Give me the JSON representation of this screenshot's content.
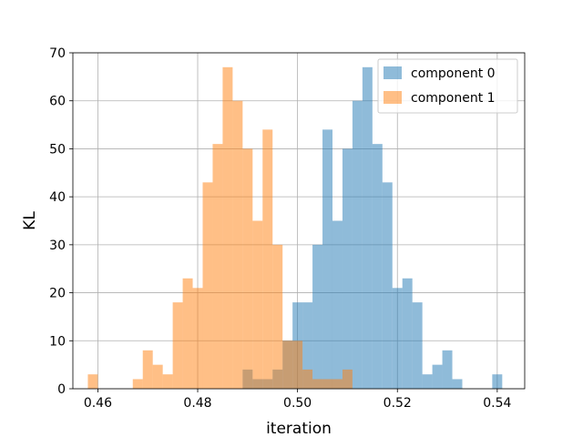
{
  "chart_data": {
    "type": "bar",
    "subtype": "overlapping-histogram",
    "title": "",
    "xlabel": "iteration",
    "ylabel": "KL",
    "xlim": [
      0.455,
      0.5455
    ],
    "ylim": [
      0,
      70
    ],
    "xticks": [
      "0.46",
      "0.48",
      "0.50",
      "0.52",
      "0.54"
    ],
    "yticks": [
      "0",
      "10",
      "20",
      "30",
      "40",
      "50",
      "60",
      "70"
    ],
    "grid": true,
    "legend": "top-right",
    "bar_opacity": 0.5,
    "series": [
      {
        "name": "component 0",
        "color": "#1f77b4",
        "bins": [
          {
            "x0": 0.489,
            "x1": 0.491,
            "value": 4
          },
          {
            "x0": 0.491,
            "x1": 0.493,
            "value": 2
          },
          {
            "x0": 0.493,
            "x1": 0.495,
            "value": 2
          },
          {
            "x0": 0.495,
            "x1": 0.497,
            "value": 4
          },
          {
            "x0": 0.497,
            "x1": 0.499,
            "value": 10
          },
          {
            "x0": 0.499,
            "x1": 0.501,
            "value": 18
          },
          {
            "x0": 0.501,
            "x1": 0.503,
            "value": 18
          },
          {
            "x0": 0.503,
            "x1": 0.505,
            "value": 30
          },
          {
            "x0": 0.505,
            "x1": 0.507,
            "value": 54
          },
          {
            "x0": 0.507,
            "x1": 0.509,
            "value": 35
          },
          {
            "x0": 0.509,
            "x1": 0.511,
            "value": 50
          },
          {
            "x0": 0.511,
            "x1": 0.513,
            "value": 60
          },
          {
            "x0": 0.513,
            "x1": 0.515,
            "value": 67
          },
          {
            "x0": 0.515,
            "x1": 0.517,
            "value": 51
          },
          {
            "x0": 0.517,
            "x1": 0.519,
            "value": 43
          },
          {
            "x0": 0.519,
            "x1": 0.521,
            "value": 21
          },
          {
            "x0": 0.521,
            "x1": 0.523,
            "value": 23
          },
          {
            "x0": 0.523,
            "x1": 0.525,
            "value": 18
          },
          {
            "x0": 0.525,
            "x1": 0.527,
            "value": 3
          },
          {
            "x0": 0.527,
            "x1": 0.529,
            "value": 5
          },
          {
            "x0": 0.529,
            "x1": 0.531,
            "value": 8
          },
          {
            "x0": 0.531,
            "x1": 0.533,
            "value": 2
          },
          {
            "x0": 0.539,
            "x1": 0.541,
            "value": 3
          }
        ]
      },
      {
        "name": "component 1",
        "color": "#ff7f0e",
        "bins": [
          {
            "x0": 0.458,
            "x1": 0.46,
            "value": 3
          },
          {
            "x0": 0.467,
            "x1": 0.469,
            "value": 2
          },
          {
            "x0": 0.469,
            "x1": 0.471,
            "value": 8
          },
          {
            "x0": 0.471,
            "x1": 0.473,
            "value": 5
          },
          {
            "x0": 0.473,
            "x1": 0.475,
            "value": 3
          },
          {
            "x0": 0.475,
            "x1": 0.477,
            "value": 18
          },
          {
            "x0": 0.477,
            "x1": 0.479,
            "value": 23
          },
          {
            "x0": 0.479,
            "x1": 0.481,
            "value": 21
          },
          {
            "x0": 0.481,
            "x1": 0.483,
            "value": 43
          },
          {
            "x0": 0.483,
            "x1": 0.485,
            "value": 51
          },
          {
            "x0": 0.485,
            "x1": 0.487,
            "value": 67
          },
          {
            "x0": 0.487,
            "x1": 0.489,
            "value": 60
          },
          {
            "x0": 0.489,
            "x1": 0.491,
            "value": 50
          },
          {
            "x0": 0.491,
            "x1": 0.493,
            "value": 35
          },
          {
            "x0": 0.493,
            "x1": 0.495,
            "value": 54
          },
          {
            "x0": 0.495,
            "x1": 0.497,
            "value": 30
          },
          {
            "x0": 0.497,
            "x1": 0.499,
            "value": 10
          },
          {
            "x0": 0.499,
            "x1": 0.501,
            "value": 10
          },
          {
            "x0": 0.501,
            "x1": 0.503,
            "value": 4
          },
          {
            "x0": 0.503,
            "x1": 0.505,
            "value": 2
          },
          {
            "x0": 0.505,
            "x1": 0.507,
            "value": 2
          },
          {
            "x0": 0.507,
            "x1": 0.509,
            "value": 2
          },
          {
            "x0": 0.509,
            "x1": 0.511,
            "value": 4
          }
        ]
      }
    ]
  }
}
